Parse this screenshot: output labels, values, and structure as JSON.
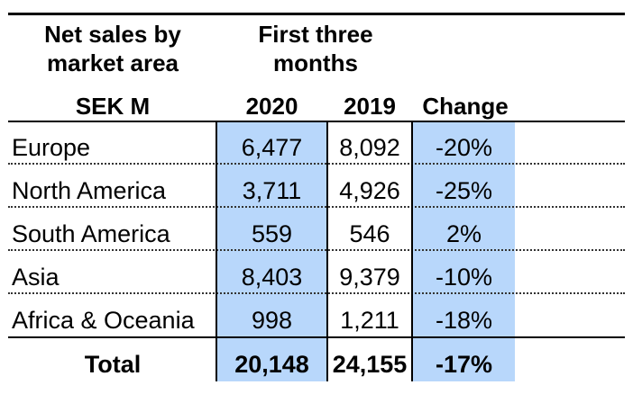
{
  "header": {
    "area_title_line1": "Net sales by",
    "area_title_line2": "market area",
    "period_line1": "First three",
    "period_line2": "months",
    "unit": "SEK M",
    "col_2020": "2020",
    "col_2019": "2019",
    "col_change": "Change"
  },
  "rows": [
    {
      "label": "Europe",
      "v2020": "6,477",
      "v2019": "8,092",
      "change": "-20%"
    },
    {
      "label": "North America",
      "v2020": "3,711",
      "v2019": "4,926",
      "change": "-25%"
    },
    {
      "label": "South America",
      "v2020": "559",
      "v2019": "546",
      "change": "2%"
    },
    {
      "label": "Asia",
      "v2020": "8,403",
      "v2019": "9,379",
      "change": "-10%"
    },
    {
      "label": "Africa & Oceania",
      "v2020": "998",
      "v2019": "1,211",
      "change": "-18%"
    }
  ],
  "total": {
    "label": "Total",
    "v2020": "20,148",
    "v2019": "24,155",
    "change": "-17%"
  },
  "colors": {
    "highlight": "#b8d7fb"
  }
}
